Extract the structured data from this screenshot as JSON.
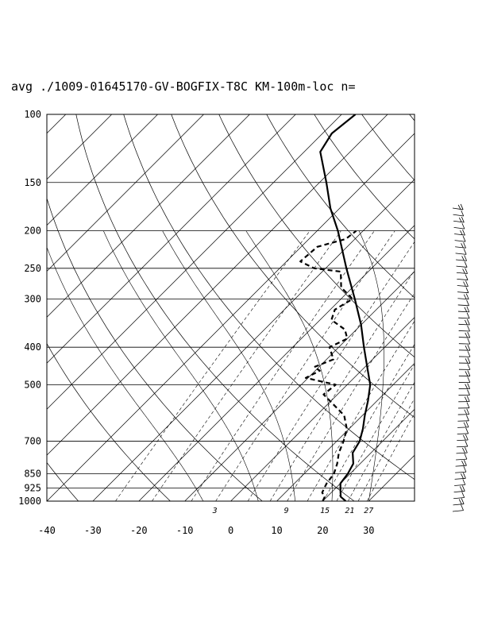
{
  "chart_data": {
    "type": "line",
    "title": "avg ./1009-01645170-GV-BOGFIX-T8C KM-100m-loc n=",
    "xlabel": "",
    "ylabel": "",
    "x_ticks": [
      "-40",
      "-30",
      "-20",
      "-10",
      "0",
      "10",
      "20",
      "30"
    ],
    "x_tick_values": [
      -40,
      -30,
      -20,
      -10,
      0,
      10,
      20,
      30
    ],
    "y_ticks": [
      "100",
      "150",
      "200",
      "250",
      "300",
      "400",
      "500",
      "700",
      "850",
      "925",
      "1000"
    ],
    "y_tick_values": [
      100,
      150,
      200,
      250,
      300,
      400,
      500,
      700,
      850,
      925,
      1000
    ],
    "pressure_range": [
      1000,
      100
    ],
    "temperature_range_at_1000": [
      -40,
      40
    ],
    "mixing_ratio_labels": [
      "3",
      "9",
      "15",
      "21",
      "27"
    ],
    "mixing_ratio_values": [
      3,
      9,
      15,
      21,
      27
    ],
    "series": [
      {
        "style": "solid",
        "points": [
          [
            1000,
            25.0
          ],
          [
            975,
            23.0
          ],
          [
            950,
            22.0
          ],
          [
            925,
            21.0
          ],
          [
            900,
            20.0
          ],
          [
            850,
            19.5
          ],
          [
            800,
            18.5
          ],
          [
            750,
            16.0
          ],
          [
            700,
            15.0
          ],
          [
            650,
            13.0
          ],
          [
            600,
            10.5
          ],
          [
            550,
            8.0
          ],
          [
            500,
            5.0
          ],
          [
            450,
            0.5
          ],
          [
            400,
            -4.5
          ],
          [
            350,
            -10.0
          ],
          [
            300,
            -17.0
          ],
          [
            250,
            -25.5
          ],
          [
            200,
            -35.5
          ],
          [
            175,
            -42.0
          ],
          [
            150,
            -48.5
          ],
          [
            125,
            -56.5
          ],
          [
            112,
            -58.0
          ],
          [
            100,
            -57.0
          ]
        ]
      },
      {
        "style": "dashed",
        "points": [
          [
            1000,
            20.0
          ],
          [
            975,
            19.5
          ],
          [
            950,
            18.0
          ],
          [
            925,
            17.5
          ],
          [
            900,
            17.0
          ],
          [
            850,
            16.5
          ],
          [
            800,
            15.0
          ],
          [
            750,
            13.0
          ],
          [
            700,
            11.5
          ],
          [
            650,
            9.5
          ],
          [
            600,
            6.0
          ],
          [
            560,
            1.0
          ],
          [
            530,
            -3.0
          ],
          [
            500,
            -2.5
          ],
          [
            480,
            -10.5
          ],
          [
            460,
            -9.0
          ],
          [
            450,
            -11.0
          ],
          [
            430,
            -8.5
          ],
          [
            400,
            -12.0
          ],
          [
            380,
            -10.0
          ],
          [
            360,
            -12.5
          ],
          [
            340,
            -17.5
          ],
          [
            320,
            -19.0
          ],
          [
            300,
            -17.5
          ],
          [
            280,
            -22.5
          ],
          [
            255,
            -26.0
          ],
          [
            250,
            -32.5
          ],
          [
            240,
            -37.0
          ],
          [
            220,
            -36.5
          ],
          [
            210,
            -32.0
          ],
          [
            200,
            -31.5
          ]
        ]
      }
    ],
    "wind_barbs": 48
  }
}
